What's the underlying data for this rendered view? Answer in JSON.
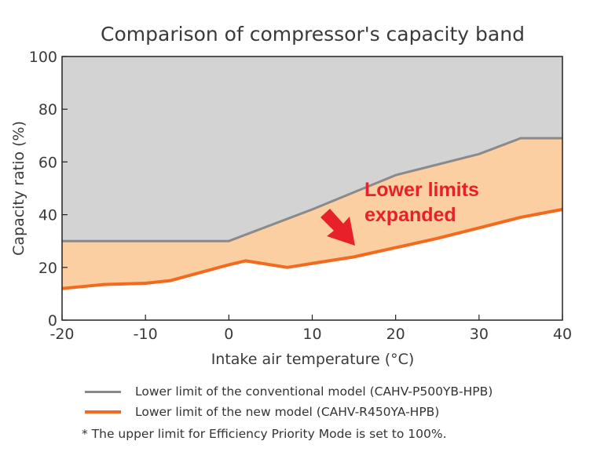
{
  "chart_data": {
    "type": "area",
    "title": "Comparison of compressor's capacity band",
    "xlabel": "Intake air temperature (°C)",
    "ylabel": "Capacity ratio (%)",
    "xlim": [
      -20,
      40
    ],
    "ylim": [
      0,
      100
    ],
    "xticks": [
      "-20",
      "-10",
      "0",
      "10",
      "20",
      "30",
      "40"
    ],
    "yticks": [
      "0",
      "20",
      "40",
      "60",
      "80",
      "100"
    ],
    "upper_limit": 100,
    "series": [
      {
        "name": "Lower limit of the conventional model (CAHV-P500YB-HPB)",
        "color": "#8a8a8a",
        "x": [
          -20,
          0,
          10,
          20,
          25,
          30,
          35,
          40
        ],
        "y": [
          30,
          30,
          42,
          55,
          59,
          63,
          69,
          69
        ]
      },
      {
        "name": "Lower limit of the new model (CAHV-R450YA-HPB)",
        "color": "#f26a1f",
        "x": [
          -20,
          -15,
          -10,
          -7,
          0,
          2,
          7,
          10,
          15,
          20,
          25,
          30,
          35,
          40
        ],
        "y": [
          12,
          13.5,
          14,
          15,
          21,
          22.5,
          20,
          21.5,
          24,
          27.5,
          31,
          35,
          39,
          42
        ]
      }
    ],
    "fill_colors": {
      "conventional_band": "#d3d3d3",
      "expanded_band": "#fbcfa2"
    },
    "annotation": {
      "lines": [
        "Lower limits",
        "expanded"
      ],
      "color": "#e8202a"
    },
    "note": "* The upper limit for Efficiency Priority Mode is set to 100%."
  }
}
